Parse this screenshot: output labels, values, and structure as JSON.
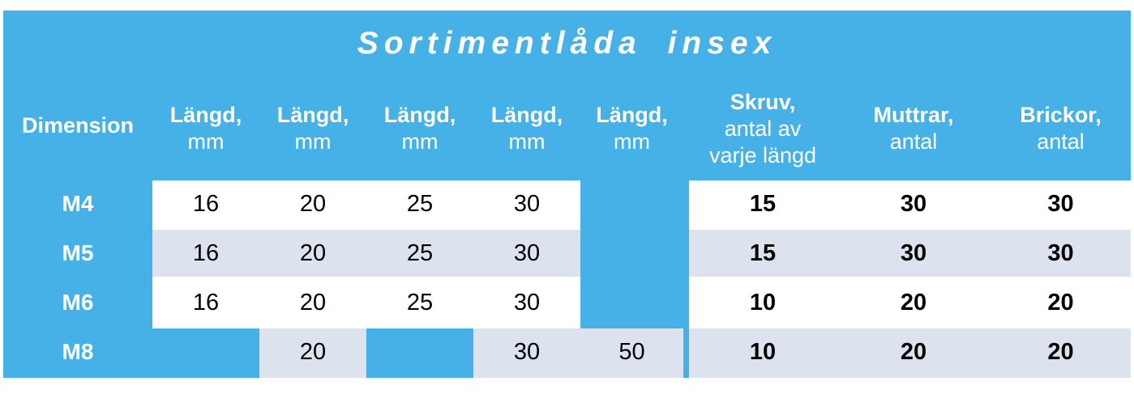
{
  "title": "Sortimentlåda insex",
  "colors": {
    "accent_blue": "#45b1e7",
    "row_white": "#ffffff",
    "row_gray": "#dce3ee",
    "header_text": "#ffffff",
    "data_text": "#000000"
  },
  "header": {
    "dimension": "Dimension",
    "length_cols": [
      {
        "line1": "Längd,",
        "line2": "mm"
      },
      {
        "line1": "Längd,",
        "line2": "mm"
      },
      {
        "line1": "Längd,",
        "line2": "mm"
      },
      {
        "line1": "Längd,",
        "line2": "mm"
      },
      {
        "line1": "Längd,",
        "line2": "mm"
      }
    ],
    "skruv": {
      "line1": "Skruv,",
      "line2": "antal av",
      "line3": "varje längd"
    },
    "muttrar": {
      "line1": "Muttrar,",
      "line2": "antal"
    },
    "brickor": {
      "line1": "Brickor,",
      "line2": "antal"
    }
  },
  "rows": [
    {
      "dimension": "M4",
      "lengths": [
        "16",
        "20",
        "25",
        "30",
        ""
      ],
      "skruv": "15",
      "muttrar": "30",
      "brickor": "30"
    },
    {
      "dimension": "M5",
      "lengths": [
        "16",
        "20",
        "25",
        "30",
        ""
      ],
      "skruv": "15",
      "muttrar": "30",
      "brickor": "30"
    },
    {
      "dimension": "M6",
      "lengths": [
        "16",
        "20",
        "25",
        "30",
        ""
      ],
      "skruv": "10",
      "muttrar": "20",
      "brickor": "20"
    },
    {
      "dimension": "M8",
      "lengths": [
        "",
        "20",
        "",
        "30",
        "50"
      ],
      "skruv": "10",
      "muttrar": "20",
      "brickor": "20"
    }
  ]
}
